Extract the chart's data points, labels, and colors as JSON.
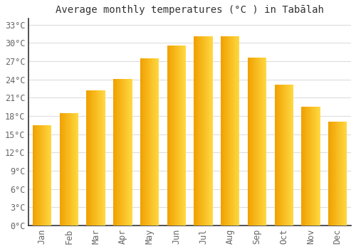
{
  "months": [
    "Jan",
    "Feb",
    "Mar",
    "Apr",
    "May",
    "Jun",
    "Jul",
    "Aug",
    "Sep",
    "Oct",
    "Nov",
    "Dec"
  ],
  "temperatures": [
    16.5,
    18.5,
    22.2,
    24.1,
    27.5,
    29.6,
    31.1,
    31.1,
    27.6,
    23.1,
    19.5,
    17.1
  ],
  "bar_color_left": "#F5A800",
  "bar_color_right": "#FFD840",
  "bar_color_mid": "#FFBE00",
  "title": "Average monthly temperatures (°C ) in Tabālah",
  "ylim": [
    0,
    34
  ],
  "yticks": [
    0,
    3,
    6,
    9,
    12,
    15,
    18,
    21,
    24,
    27,
    30,
    33
  ],
  "ytick_labels": [
    "0°C",
    "3°C",
    "6°C",
    "9°C",
    "12°C",
    "15°C",
    "18°C",
    "21°C",
    "24°C",
    "27°C",
    "30°C",
    "33°C"
  ],
  "background_color": "#FFFFFF",
  "grid_color": "#DDDDDD",
  "title_fontsize": 10,
  "tick_fontsize": 8.5,
  "font_family": "monospace",
  "bar_width": 0.7
}
